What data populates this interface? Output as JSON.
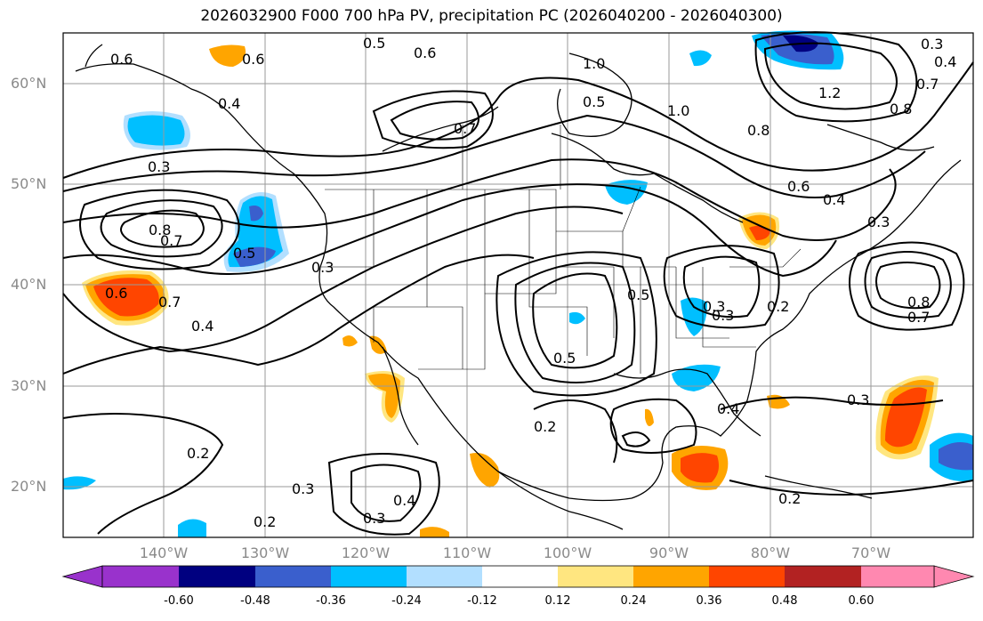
{
  "title": "2026032900 F000 700 hPa PV, precipitation PC (2026040200 - 2026040300)",
  "lat_labels": [
    "60°N",
    "50°N",
    "40°N",
    "30°N",
    "20°N"
  ],
  "lon_labels": [
    "140°W",
    "130°W",
    "120°W",
    "110°W",
    "100°W",
    "90°W",
    "80°W",
    "70°W"
  ],
  "colorbar": {
    "ticks": [
      "-0.60",
      "-0.48",
      "-0.36",
      "-0.24",
      "-0.12",
      "0.12",
      "0.24",
      "0.36",
      "0.48",
      "0.60"
    ],
    "colors": [
      "#9932cc",
      "#000080",
      "#3a5fcd",
      "#00bfff",
      "#b2dfff",
      "#ffffff",
      "#ffe680",
      "#ffa500",
      "#ff4500",
      "#b22222",
      "#ff88b0"
    ]
  },
  "contour_labels": [
    "0.6",
    "0.6",
    "0.5",
    "0.6",
    "1.0",
    "0.3",
    "0.4",
    "0.8",
    "0.3",
    "0.7",
    "0.4",
    "1.0",
    "0.7",
    "0.5",
    "0.8",
    "1.2",
    "0.6",
    "0.8",
    "0.7",
    "0.5",
    "0.3",
    "0.6",
    "0.7",
    "0.4",
    "0.4",
    "0.3",
    "0.5",
    "0.3",
    "0.2",
    "0.8",
    "0.7",
    "0.5",
    "0.2",
    "0.3",
    "0.4",
    "0.3",
    "0.2",
    "0.2",
    "0.3",
    "0.4",
    "0.3",
    "0.2"
  ]
}
